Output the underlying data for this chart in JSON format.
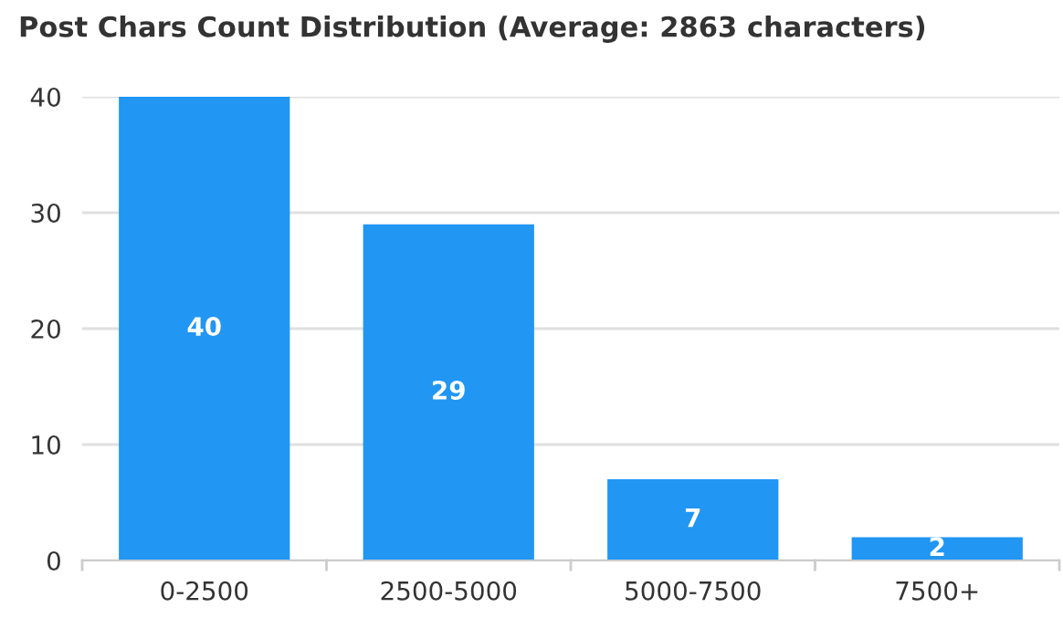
{
  "chart_data": {
    "type": "bar",
    "title": "Post Chars Count Distribution (Average: 2863 characters)",
    "categories": [
      "0-2500",
      "2500-5000",
      "5000-7500",
      "7500+"
    ],
    "values": [
      40,
      29,
      7,
      2
    ],
    "color": "#2196f3",
    "ylim": [
      0,
      40
    ],
    "yticks": [
      0,
      10,
      20,
      30,
      40
    ],
    "grid": "y",
    "data_labels": true
  }
}
